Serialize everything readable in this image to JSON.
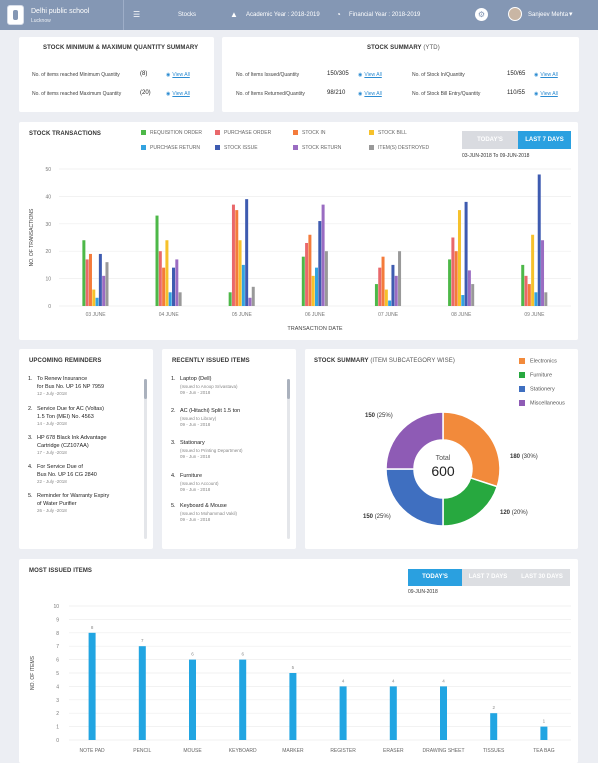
{
  "header": {
    "school_name": "Delhi public school",
    "school_city": "Lucknow",
    "nav_stocks": "Stocks",
    "academic_year": "Academic Year : 2018-2019",
    "financial_year": "Financial Year : 2018-2019",
    "user_name": "Sanjeev Mehta"
  },
  "qty_summary": {
    "title": "STOCK MINIMUM & MAXIMUM QUANTITY SUMMARY",
    "rows": [
      {
        "label": "No. of items reached Minimum Quantity",
        "value": "(8)",
        "link": "View All"
      },
      {
        "label": "No. of items reached Maximum Quantity",
        "value": "(20)",
        "link": "View All"
      }
    ]
  },
  "stock_summary": {
    "title": "STOCK SUMMARY",
    "title_sub": "(YTD)",
    "rows": [
      {
        "label": "No. of Items Issued/Quantity",
        "value": "150/305",
        "link": "View All"
      },
      {
        "label": "No. of Items Returned/Quantity",
        "value": "98/210",
        "link": "View All"
      },
      {
        "label": "No. of Stock In/Quantity",
        "value": "150/65",
        "link": "View All"
      },
      {
        "label": "No. of Stock Bill Entry/Quantity",
        "value": "110/55",
        "link": "View All"
      }
    ]
  },
  "transactions": {
    "title": "STOCK TRANSACTIONS",
    "btn_today": "TODAY'S",
    "btn_7days": "LAST 7 DAYS",
    "date_range": "03-JUN-2018 To 09-JUN-2018",
    "legend": [
      {
        "name": "REQUISITION ORDER",
        "color": "#4db848"
      },
      {
        "name": "PURCHASE ORDER",
        "color": "#e9686b"
      },
      {
        "name": "STOCK IN",
        "color": "#f47b3b"
      },
      {
        "name": "STOCK BILL",
        "color": "#f6c12b"
      },
      {
        "name": "PURCHASE RETURN",
        "color": "#33a3e0"
      },
      {
        "name": "STOCK ISSUE",
        "color": "#3e5bb0"
      },
      {
        "name": "STOCK RETURN",
        "color": "#9a6cc2"
      },
      {
        "name": "ITEM(S) DESTROYED",
        "color": "#999999"
      }
    ]
  },
  "reminders": {
    "title": "UPCOMING REMINDERS",
    "items": [
      {
        "num": "1.",
        "l1": "To Renew Insurance",
        "l2": "for Bus No. UP 16 NP 7959",
        "date": "12 - July -2018"
      },
      {
        "num": "2.",
        "l1": "Service Due for AC (Voltas)",
        "l2": "1.5 Ton (MEI) No. 4563",
        "date": "14 - July -2018"
      },
      {
        "num": "3.",
        "l1": "HP 678 Black Ink Advantage",
        "l2": "Cartridge (CZ107AA)",
        "date": "17 - July -2018"
      },
      {
        "num": "4.",
        "l1": "For Service Due of",
        "l2": "Bus No. UP 16 CG 2840",
        "date": "22 - July -2018"
      },
      {
        "num": "5.",
        "l1": "Reminder for Warranty Expiry",
        "l2": "of Water Purifier",
        "date": "26 - July -2018"
      }
    ]
  },
  "issued": {
    "title": "RECENTLY ISSUED ITEMS",
    "items": [
      {
        "num": "1.",
        "name": "Laptop (Dell)",
        "sub": "(Issued to Anoop Srivastava)",
        "date": "09 - Jun - 2018"
      },
      {
        "num": "2.",
        "name": "AC (Hitachi) Split 1.5 ton",
        "sub": "(Issued to Library)",
        "date": "09 - Jun - 2018"
      },
      {
        "num": "3.",
        "name": "Stationary",
        "sub": "(Issued to Printing Department)",
        "date": "09 - Jun - 2018"
      },
      {
        "num": "4.",
        "name": "Furniture",
        "sub": "(Issued to Account)",
        "date": "09 - Jun - 2018"
      },
      {
        "num": "5.",
        "name": "Keyboard & Mouse",
        "sub": "(Issued to Mohammad Vakil)",
        "date": "09 - Jun - 2018"
      }
    ]
  },
  "subcat": {
    "title": "STOCK SUMMARY",
    "title_sub": "(ITEM SUBCATEGORY WISE)",
    "total_label": "Total",
    "total": "600"
  },
  "most_issued": {
    "title": "MOST ISSUED ITEMS",
    "btn_today": "TODAY'S",
    "btn_7": "LAST 7 DAYS",
    "btn_30": "LAST 30 DAYS",
    "date": "09-JUN-2018"
  },
  "chart_data": [
    {
      "type": "bar",
      "id": "transactions",
      "ylabel": "NO. OF TRANSACTIONS",
      "xlabel": "TRANSACTION DATE",
      "ylim": [
        0,
        50
      ],
      "yticks": [
        0,
        10,
        20,
        30,
        40,
        50
      ],
      "grid": true,
      "categories": [
        "03 JUNE",
        "04 JUNE",
        "05 JUNE",
        "06 JUNE",
        "07 JUNE",
        "08 JUNE",
        "09 JUNE"
      ],
      "series": [
        {
          "name": "REQUISITION ORDER",
          "values": [
            24,
            33,
            5,
            18,
            8,
            17,
            15
          ]
        },
        {
          "name": "PURCHASE ORDER",
          "values": [
            17,
            20,
            37,
            23,
            14,
            25,
            11
          ]
        },
        {
          "name": "STOCK IN",
          "values": [
            19,
            14,
            35,
            26,
            18,
            20,
            8
          ]
        },
        {
          "name": "STOCK BILL",
          "values": [
            6,
            24,
            24,
            11,
            6,
            35,
            26
          ]
        },
        {
          "name": "PURCHASE RETURN",
          "values": [
            3,
            5,
            15,
            14,
            2,
            4,
            5
          ]
        },
        {
          "name": "STOCK ISSUE",
          "values": [
            19,
            14,
            39,
            31,
            15,
            38,
            48
          ]
        },
        {
          "name": "STOCK RETURN",
          "values": [
            11,
            17,
            3,
            37,
            11,
            13,
            24
          ]
        },
        {
          "name": "ITEM(S) DESTROYED",
          "values": [
            16,
            5,
            7,
            20,
            20,
            8,
            5
          ]
        }
      ]
    },
    {
      "type": "pie",
      "id": "subcategory",
      "total": 600,
      "slices": [
        {
          "name": "Electronics",
          "value": 180,
          "label": "180",
          "pct": "(30%)",
          "color": "#f28a3b"
        },
        {
          "name": "Furniture",
          "value": 120,
          "label": "120",
          "pct": "(20%)",
          "color": "#27a83f"
        },
        {
          "name": "Stationery",
          "value": 150,
          "label": "150",
          "pct": "(25%)",
          "color": "#3f6fc0"
        },
        {
          "name": "Miscellaneous",
          "value": 150,
          "label": "150",
          "pct": "(25%)",
          "color": "#8e5bb5"
        }
      ]
    },
    {
      "type": "bar",
      "id": "most_issued",
      "ylabel": "NO. OF ITEMS",
      "ylim": [
        0,
        10
      ],
      "yticks": [
        0,
        1,
        2,
        3,
        4,
        5,
        6,
        7,
        8,
        9,
        10
      ],
      "grid": true,
      "categories": [
        "NOTE PAD",
        "PENCIL",
        "MOUSE",
        "KEYBOARD",
        "MARKER",
        "REGISTER",
        "ERASER",
        "DRAWING SHEET",
        "TISSUES",
        "TEA BAG"
      ],
      "values": [
        8,
        7,
        6,
        6,
        5,
        4,
        4,
        4,
        2,
        1
      ]
    }
  ]
}
